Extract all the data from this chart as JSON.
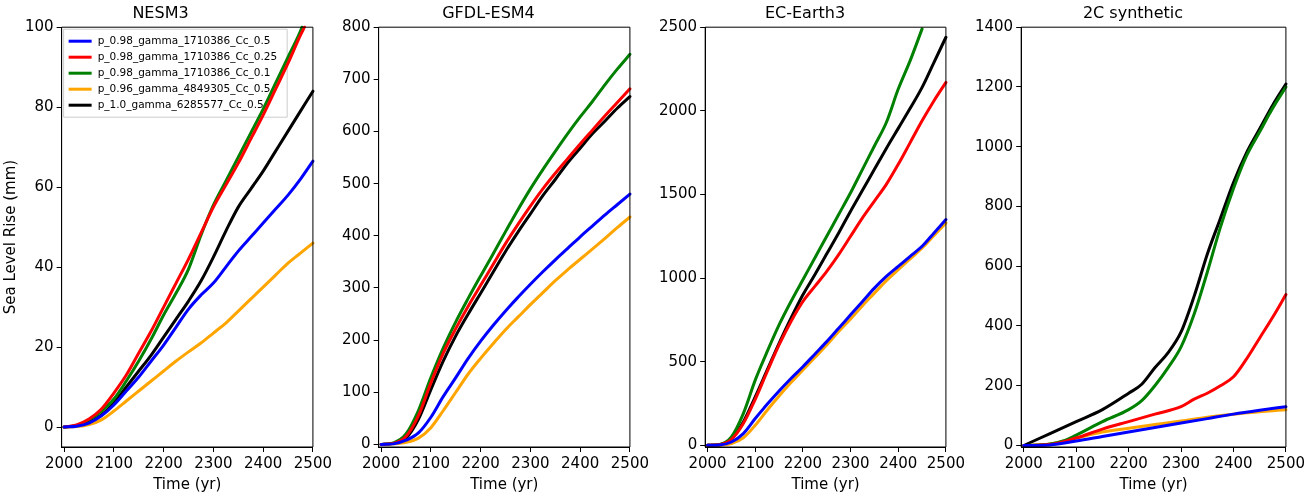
{
  "chart_data": [
    {
      "type": "line",
      "title": "NESM3",
      "xlabel": "Time (yr)",
      "ylabel": "Sea Level Rise (mm)",
      "xlim": [
        1995,
        2500
      ],
      "xticks": [
        2000,
        2100,
        2200,
        2300,
        2400,
        2500
      ],
      "ylim": [
        -5,
        100
      ],
      "yticks": [
        0,
        20,
        40,
        60,
        80,
        100
      ],
      "grid": false,
      "legend": "top left",
      "marker": "none",
      "line_style": "solid",
      "series": [
        {
          "name": "p_0.98_gamma_1710386_Cc_0.5",
          "color": "#0000ff",
          "x": [
            2000,
            2025,
            2050,
            2075,
            2100,
            2125,
            2150,
            2175,
            2200,
            2225,
            2250,
            2275,
            2300,
            2325,
            2350,
            2375,
            2400,
            2425,
            2450,
            2475,
            2500
          ],
          "values": [
            0,
            0.2,
            1,
            2.8,
            5.5,
            9,
            12.5,
            16.5,
            20.5,
            25,
            29.5,
            33,
            36,
            40,
            44,
            47.5,
            51,
            54.5,
            58,
            62,
            66.5
          ]
        },
        {
          "name": "p_0.98_gamma_1710386_Cc_0.25",
          "color": "#ff0000",
          "x": [
            2000,
            2025,
            2050,
            2075,
            2100,
            2125,
            2150,
            2175,
            2200,
            2225,
            2250,
            2275,
            2300,
            2325,
            2350,
            2375,
            2400,
            2425,
            2450,
            2475,
            2483
          ],
          "values": [
            0,
            0.5,
            2,
            4.5,
            8.5,
            13,
            18.5,
            24,
            30,
            36,
            42,
            48.5,
            55,
            60.5,
            66,
            72,
            78,
            84.5,
            91,
            98,
            100
          ]
        },
        {
          "name": "p_0.98_gamma_1710386_Cc_0.1",
          "color": "#008000",
          "x": [
            2000,
            2025,
            2050,
            2075,
            2100,
            2125,
            2150,
            2175,
            2200,
            2225,
            2250,
            2275,
            2300,
            2325,
            2350,
            2375,
            2400,
            2425,
            2450,
            2475,
            2478
          ],
          "values": [
            0,
            0.4,
            1.8,
            4,
            7,
            11.5,
            16.5,
            22,
            28,
            33.5,
            39.5,
            48,
            55.5,
            61.5,
            67.5,
            73.5,
            79.5,
            86,
            92.5,
            99,
            100
          ]
        },
        {
          "name": "p_0.96_gamma_4849305_Cc_0.5",
          "color": "#ffa500",
          "x": [
            2000,
            2025,
            2050,
            2075,
            2100,
            2125,
            2150,
            2175,
            2200,
            2225,
            2250,
            2275,
            2300,
            2325,
            2350,
            2375,
            2400,
            2425,
            2450,
            2475,
            2500
          ],
          "values": [
            0,
            0.1,
            0.6,
            1.8,
            4,
            6.5,
            9,
            11.5,
            14,
            16.5,
            18.8,
            21,
            23.5,
            26,
            29,
            32,
            35,
            38,
            41,
            43.5,
            46
          ]
        },
        {
          "name": "p_1.0_gamma_6285577_Cc_0.5",
          "color": "#000000",
          "x": [
            2000,
            2025,
            2050,
            2075,
            2100,
            2125,
            2150,
            2175,
            2200,
            2225,
            2250,
            2275,
            2300,
            2325,
            2350,
            2375,
            2400,
            2425,
            2450,
            2475,
            2500
          ],
          "values": [
            0,
            0.3,
            1.2,
            3,
            6,
            10,
            14,
            18,
            22.5,
            27,
            31.5,
            36.5,
            42.5,
            49,
            55,
            59.5,
            64,
            69,
            74,
            79,
            84
          ]
        }
      ]
    },
    {
      "type": "line",
      "title": "GFDL-ESM4",
      "xlabel": "Time (yr)",
      "xlim": [
        1995,
        2500
      ],
      "xticks": [
        2000,
        2100,
        2200,
        2300,
        2400,
        2500
      ],
      "ylim": [
        -5,
        800
      ],
      "yticks": [
        0,
        100,
        200,
        300,
        400,
        500,
        600,
        700,
        800
      ],
      "grid": false,
      "marker": "none",
      "line_style": "solid",
      "series": [
        {
          "color": "#0000ff",
          "x": [
            2000,
            2025,
            2050,
            2075,
            2100,
            2125,
            2150,
            2175,
            2200,
            2225,
            2250,
            2275,
            2300,
            2325,
            2350,
            2375,
            2400,
            2425,
            2450,
            2475,
            2500
          ],
          "values": [
            0,
            1,
            8,
            22,
            52,
            92,
            128,
            165,
            198,
            228,
            256,
            282,
            307,
            331,
            354,
            376,
            398,
            419,
            440,
            460,
            480
          ]
        },
        {
          "color": "#ff0000",
          "x": [
            2000,
            2025,
            2050,
            2075,
            2100,
            2125,
            2150,
            2175,
            2200,
            2225,
            2250,
            2275,
            2300,
            2325,
            2350,
            2375,
            2400,
            2425,
            2450,
            2475,
            2500
          ],
          "values": [
            0,
            2,
            15,
            55,
            118,
            175,
            222,
            265,
            305,
            345,
            385,
            422,
            457,
            490,
            520,
            548,
            576,
            603,
            630,
            656,
            682
          ]
        },
        {
          "color": "#008000",
          "x": [
            2000,
            2025,
            2050,
            2075,
            2100,
            2125,
            2150,
            2175,
            2200,
            2225,
            2250,
            2275,
            2300,
            2325,
            2350,
            2375,
            2400,
            2425,
            2450,
            2475,
            2500
          ],
          "values": [
            0,
            3,
            20,
            65,
            128,
            185,
            235,
            280,
            323,
            365,
            408,
            450,
            490,
            527,
            562,
            596,
            628,
            658,
            690,
            720,
            748
          ]
        },
        {
          "color": "#ffa500",
          "x": [
            2000,
            2025,
            2050,
            2075,
            2100,
            2125,
            2150,
            2175,
            2200,
            2225,
            2250,
            2275,
            2300,
            2325,
            2350,
            2375,
            2400,
            2425,
            2450,
            2475,
            2500
          ],
          "values": [
            0,
            1,
            4,
            12,
            32,
            65,
            100,
            135,
            165,
            193,
            220,
            244,
            268,
            291,
            314,
            335,
            355,
            375,
            395,
            416,
            436
          ]
        },
        {
          "color": "#000000",
          "x": [
            2000,
            2025,
            2050,
            2075,
            2100,
            2125,
            2150,
            2175,
            2200,
            2225,
            2250,
            2275,
            2300,
            2325,
            2350,
            2375,
            2400,
            2425,
            2450,
            2475,
            2500
          ],
          "values": [
            0,
            2,
            12,
            48,
            105,
            160,
            208,
            250,
            290,
            330,
            370,
            407,
            442,
            477,
            508,
            540,
            568,
            596,
            620,
            645,
            667
          ]
        }
      ]
    },
    {
      "type": "line",
      "title": "EC-Earth3",
      "xlabel": "Time (yr)",
      "xlim": [
        1995,
        2500
      ],
      "xticks": [
        2000,
        2100,
        2200,
        2300,
        2400,
        2500
      ],
      "ylim": [
        -10,
        2500
      ],
      "yticks": [
        0,
        500,
        1000,
        1500,
        2000,
        2500
      ],
      "grid": false,
      "marker": "none",
      "line_style": "solid",
      "series": [
        {
          "color": "#0000ff",
          "x": [
            2000,
            2025,
            2050,
            2075,
            2100,
            2125,
            2150,
            2175,
            2200,
            2225,
            2250,
            2275,
            2300,
            2325,
            2350,
            2375,
            2400,
            2425,
            2450,
            2475,
            2500
          ],
          "values": [
            0,
            2,
            20,
            70,
            160,
            245,
            325,
            400,
            470,
            545,
            620,
            700,
            780,
            860,
            940,
            1010,
            1070,
            1130,
            1190,
            1270,
            1350
          ]
        },
        {
          "color": "#ff0000",
          "x": [
            2000,
            2025,
            2050,
            2075,
            2100,
            2125,
            2150,
            2175,
            2200,
            2225,
            2250,
            2275,
            2300,
            2325,
            2350,
            2375,
            2400,
            2425,
            2450,
            2475,
            2500
          ],
          "values": [
            0,
            3,
            35,
            130,
            275,
            440,
            600,
            740,
            860,
            950,
            1040,
            1140,
            1250,
            1360,
            1460,
            1560,
            1680,
            1810,
            1940,
            2060,
            2170
          ]
        },
        {
          "color": "#008000",
          "x": [
            2000,
            2025,
            2050,
            2075,
            2100,
            2125,
            2150,
            2175,
            2200,
            2225,
            2250,
            2275,
            2300,
            2325,
            2350,
            2375,
            2400,
            2425,
            2450
          ],
          "values": [
            0,
            5,
            50,
            190,
            390,
            560,
            720,
            860,
            990,
            1120,
            1250,
            1380,
            1510,
            1650,
            1790,
            1930,
            2130,
            2300,
            2490
          ]
        },
        {
          "color": "#ffa500",
          "x": [
            2000,
            2025,
            2050,
            2075,
            2100,
            2125,
            2150,
            2175,
            2200,
            2225,
            2250,
            2275,
            2300,
            2325,
            2350,
            2375,
            2400,
            2425,
            2450,
            2475,
            2500
          ],
          "values": [
            0,
            1,
            10,
            45,
            120,
            210,
            295,
            375,
            450,
            525,
            600,
            680,
            755,
            835,
            910,
            985,
            1050,
            1115,
            1180,
            1255,
            1330
          ]
        },
        {
          "color": "#000000",
          "x": [
            2000,
            2025,
            2050,
            2075,
            2100,
            2125,
            2150,
            2175,
            2200,
            2225,
            2250,
            2275,
            2300,
            2325,
            2350,
            2375,
            2400,
            2425,
            2450,
            2475,
            2500
          ],
          "values": [
            0,
            3,
            40,
            140,
            290,
            450,
            610,
            760,
            900,
            1020,
            1145,
            1270,
            1400,
            1525,
            1650,
            1775,
            1895,
            2015,
            2140,
            2290,
            2440
          ]
        }
      ]
    },
    {
      "type": "line",
      "title": "2C synthetic",
      "xlabel": "Time (yr)",
      "xlim": [
        1995,
        2500
      ],
      "xticks": [
        2000,
        2100,
        2200,
        2300,
        2400,
        2500
      ],
      "ylim": [
        -5,
        1400
      ],
      "yticks": [
        0,
        200,
        400,
        600,
        800,
        1000,
        1200,
        1400
      ],
      "grid": false,
      "marker": "none",
      "line_style": "solid",
      "series": [
        {
          "color": "#0000ff",
          "x": [
            2000,
            2050,
            2100,
            2150,
            2200,
            2250,
            2300,
            2350,
            2400,
            2450,
            2500
          ],
          "values": [
            0,
            2,
            15,
            30,
            45,
            60,
            75,
            90,
            105,
            118,
            130
          ]
        },
        {
          "color": "#ff0000",
          "x": [
            2000,
            2050,
            2100,
            2150,
            2200,
            2250,
            2300,
            2325,
            2350,
            2375,
            2400,
            2425,
            2450,
            2475,
            2500
          ],
          "values": [
            0,
            3,
            25,
            55,
            80,
            105,
            130,
            155,
            175,
            200,
            230,
            290,
            360,
            430,
            505
          ]
        },
        {
          "color": "#008000",
          "x": [
            2000,
            2050,
            2075,
            2100,
            2150,
            2200,
            2225,
            2250,
            2275,
            2300,
            2325,
            2350,
            2375,
            2400,
            2425,
            2450,
            2475,
            2500
          ],
          "values": [
            0,
            5,
            15,
            35,
            80,
            120,
            150,
            200,
            260,
            330,
            440,
            580,
            730,
            860,
            970,
            1050,
            1130,
            1200
          ]
        },
        {
          "color": "#ffa500",
          "x": [
            2000,
            2050,
            2100,
            2150,
            2200,
            2250,
            2300,
            2350,
            2400,
            2450,
            2500
          ],
          "values": [
            0,
            5,
            25,
            45,
            58,
            70,
            82,
            95,
            105,
            113,
            120
          ]
        },
        {
          "color": "#000000",
          "x": [
            2000,
            2050,
            2100,
            2150,
            2200,
            2225,
            2250,
            2275,
            2300,
            2325,
            2350,
            2375,
            2400,
            2425,
            2450,
            2475,
            2500
          ],
          "values": [
            0,
            40,
            80,
            120,
            175,
            205,
            260,
            310,
            380,
            500,
            640,
            760,
            880,
            980,
            1060,
            1140,
            1210
          ]
        }
      ]
    }
  ]
}
